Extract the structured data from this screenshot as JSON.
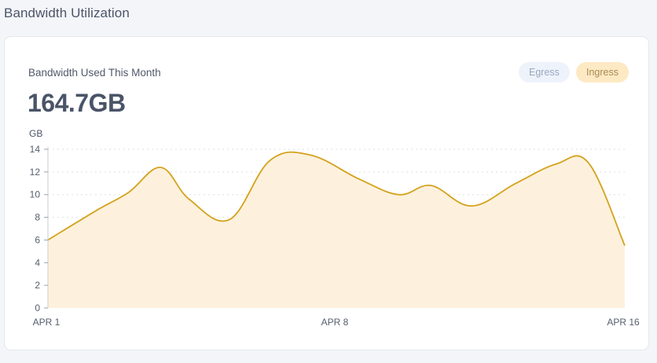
{
  "page": {
    "title": "Bandwidth Utilization"
  },
  "card": {
    "title": "Bandwidth Used This Month",
    "total": "164.7GB"
  },
  "toggles": [
    {
      "label": "Egress",
      "active": false
    },
    {
      "label": "Ingress",
      "active": true
    }
  ],
  "colors": {
    "line": "#d4a21c",
    "area": "#fdf1dd",
    "grid": "#dcdfe5"
  },
  "chart_data": {
    "type": "area",
    "y_unit_label": "GB",
    "ylim": [
      0,
      14
    ],
    "y_ticks": [
      0,
      2,
      4,
      6,
      8,
      10,
      12,
      14
    ],
    "x_ticks": [
      "APR 1",
      "APR 8",
      "APR 16"
    ],
    "grid": true,
    "series": [
      {
        "values": [
          [
            0.0,
            6.0
          ],
          [
            1.2,
            8.6
          ],
          [
            2.0,
            10.2
          ],
          [
            2.8,
            12.4
          ],
          [
            3.5,
            9.6
          ],
          [
            4.5,
            7.8
          ],
          [
            5.5,
            13.0
          ],
          [
            6.5,
            13.5
          ],
          [
            7.7,
            11.4
          ],
          [
            8.7,
            10.0
          ],
          [
            9.5,
            10.8
          ],
          [
            10.5,
            9.0
          ],
          [
            11.6,
            11.0
          ],
          [
            12.6,
            12.7
          ],
          [
            13.4,
            12.8
          ],
          [
            14.3,
            5.5
          ]
        ]
      }
    ]
  }
}
